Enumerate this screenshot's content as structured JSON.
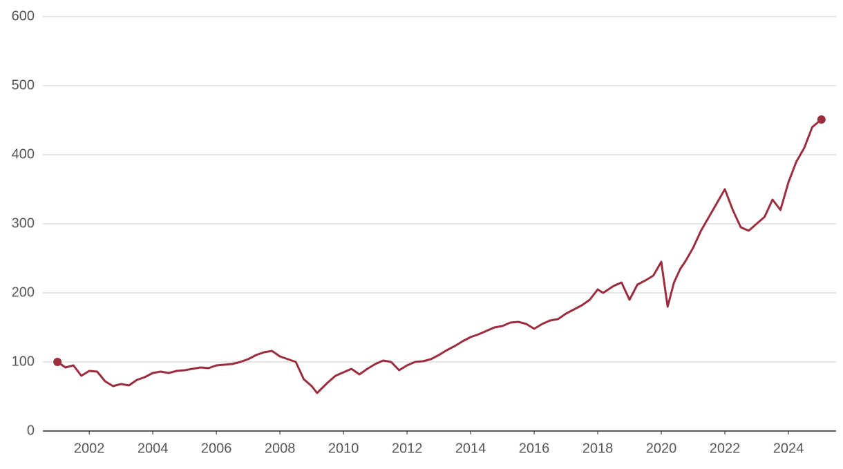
{
  "chart_data": {
    "type": "line",
    "x": [
      2001.0,
      2001.25,
      2001.5,
      2001.75,
      2002.0,
      2002.25,
      2002.5,
      2002.75,
      2003.0,
      2003.25,
      2003.5,
      2003.75,
      2004.0,
      2004.25,
      2004.5,
      2004.75,
      2005.0,
      2005.25,
      2005.5,
      2005.75,
      2006.0,
      2006.25,
      2006.5,
      2006.75,
      2007.0,
      2007.25,
      2007.5,
      2007.75,
      2008.0,
      2008.25,
      2008.5,
      2008.75,
      2009.0,
      2009.17,
      2009.5,
      2009.75,
      2010.0,
      2010.25,
      2010.5,
      2010.75,
      2011.0,
      2011.25,
      2011.5,
      2011.75,
      2012.0,
      2012.25,
      2012.5,
      2012.75,
      2013.0,
      2013.25,
      2013.5,
      2013.75,
      2014.0,
      2014.25,
      2014.5,
      2014.75,
      2015.0,
      2015.25,
      2015.5,
      2015.75,
      2016.0,
      2016.25,
      2016.5,
      2016.75,
      2017.0,
      2017.25,
      2017.5,
      2017.75,
      2018.0,
      2018.17,
      2018.5,
      2018.75,
      2019.0,
      2019.25,
      2019.5,
      2019.75,
      2020.0,
      2020.2,
      2020.4,
      2020.6,
      2020.75,
      2021.0,
      2021.25,
      2021.5,
      2021.75,
      2022.0,
      2022.25,
      2022.5,
      2022.75,
      2023.0,
      2023.25,
      2023.5,
      2023.75,
      2024.0,
      2024.25,
      2024.5,
      2024.75,
      2025.04
    ],
    "series": [
      {
        "color": "#9b2d3e",
        "values": [
          100,
          92,
          95,
          80,
          87,
          86,
          72,
          65,
          68,
          66,
          74,
          78,
          84,
          86,
          84,
          87,
          88,
          90,
          92,
          91,
          95,
          96,
          97,
          100,
          104,
          110,
          114,
          116,
          108,
          104,
          100,
          75,
          65,
          55,
          70,
          80,
          85,
          90,
          82,
          90,
          97,
          102,
          100,
          88,
          95,
          100,
          101,
          104,
          110,
          117,
          123,
          130,
          136,
          140,
          145,
          150,
          152,
          157,
          158,
          155,
          148,
          155,
          160,
          162,
          170,
          176,
          182,
          190,
          205,
          200,
          210,
          215,
          190,
          212,
          218,
          225,
          245,
          180,
          215,
          235,
          245,
          265,
          290,
          310,
          330,
          350,
          320,
          295,
          290,
          300,
          310,
          335,
          320,
          360,
          390,
          410,
          440,
          451
        ]
      }
    ],
    "xlim": [
      2000.54,
      2025.5
    ],
    "xticks": [
      2002,
      2004,
      2006,
      2008,
      2010,
      2012,
      2014,
      2016,
      2018,
      2020,
      2022,
      2024
    ],
    "ylim": [
      0,
      600
    ],
    "yticks": [
      0,
      100,
      200,
      300,
      400,
      500,
      600
    ],
    "grid": true
  }
}
